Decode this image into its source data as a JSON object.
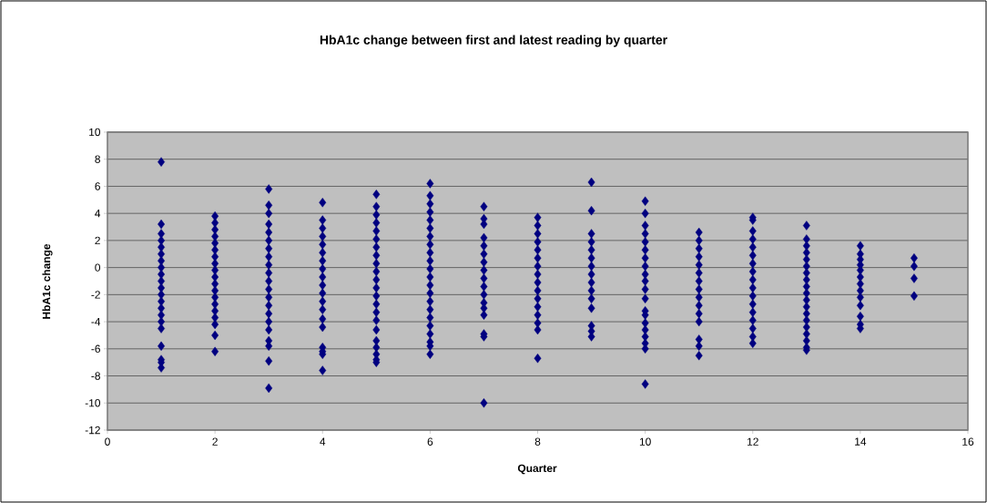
{
  "chart_data": {
    "type": "scatter",
    "title": "HbA1c change between first and latest reading by quarter",
    "xlabel": "Quarter",
    "ylabel": "HbA1c change",
    "xlim": [
      0,
      16
    ],
    "xticks": [
      0,
      2,
      4,
      6,
      8,
      10,
      12,
      14,
      16
    ],
    "ylim": [
      -12,
      10
    ],
    "yticks": [
      -12,
      -10,
      -8,
      -6,
      -4,
      -2,
      0,
      2,
      4,
      6,
      8,
      10
    ],
    "grid": "y",
    "marker": "diamond",
    "series": [
      {
        "color": "#000080",
        "x": [
          1,
          1,
          1,
          1,
          1,
          1,
          1,
          1,
          1,
          1,
          1,
          1,
          1,
          1,
          1,
          1,
          1,
          1,
          1,
          1,
          1,
          2,
          2,
          2,
          2,
          2,
          2,
          2,
          2,
          2,
          2,
          2,
          2,
          2,
          2,
          2,
          2,
          2,
          2,
          2,
          3,
          3,
          3,
          3,
          3,
          3,
          3,
          3,
          3,
          3,
          3,
          3,
          3,
          3,
          3,
          3,
          3,
          3,
          3,
          3,
          3,
          4,
          4,
          4,
          4,
          4,
          4,
          4,
          4,
          4,
          4,
          4,
          4,
          4,
          4,
          4,
          4,
          4,
          4,
          4,
          5,
          5,
          5,
          5,
          5,
          5,
          5,
          5,
          5,
          5,
          5,
          5,
          5,
          5,
          5,
          5,
          5,
          5,
          5,
          5,
          5,
          5,
          6,
          6,
          6,
          6,
          6,
          6,
          6,
          6,
          6,
          6,
          6,
          6,
          6,
          6,
          6,
          6,
          6,
          6,
          6,
          6,
          6,
          6,
          7,
          7,
          7,
          7,
          7,
          7,
          7,
          7,
          7,
          7,
          7,
          7,
          7,
          7,
          7,
          7,
          7,
          8,
          8,
          8,
          8,
          8,
          8,
          8,
          8,
          8,
          8,
          8,
          8,
          8,
          8,
          8,
          8,
          9,
          9,
          9,
          9,
          9,
          9,
          9,
          9,
          9,
          9,
          9,
          9,
          9,
          9,
          9,
          10,
          10,
          10,
          10,
          10,
          10,
          10,
          10,
          10,
          10,
          10,
          10,
          10,
          10,
          10,
          10,
          10,
          10,
          10,
          10,
          11,
          11,
          11,
          11,
          11,
          11,
          11,
          11,
          11,
          11,
          11,
          11,
          11,
          11,
          11,
          12,
          12,
          12,
          12,
          12,
          12,
          12,
          12,
          12,
          12,
          12,
          12,
          12,
          12,
          12,
          12,
          12,
          13,
          13,
          13,
          13,
          13,
          13,
          13,
          13,
          13,
          13,
          13,
          13,
          13,
          13,
          13,
          13,
          13,
          13,
          13,
          14,
          14,
          14,
          14,
          14,
          14,
          14,
          14,
          14,
          14,
          14,
          14,
          14,
          15,
          15,
          15,
          15
        ],
        "values": [
          7.8,
          3.2,
          2.5,
          2.0,
          1.5,
          1.0,
          0.5,
          0.0,
          -0.5,
          -1.0,
          -1.5,
          -2.0,
          -2.5,
          -3.0,
          -3.5,
          -4.0,
          -4.5,
          -5.8,
          -6.8,
          -7.0,
          -7.4,
          3.8,
          3.3,
          2.8,
          2.3,
          1.8,
          1.3,
          0.8,
          0.3,
          -0.2,
          -0.7,
          -1.2,
          -1.7,
          -2.2,
          -2.7,
          -3.2,
          -3.7,
          -4.2,
          -5.0,
          -6.2,
          5.8,
          4.6,
          4.0,
          3.2,
          2.6,
          2.0,
          1.4,
          0.8,
          0.2,
          -0.4,
          -1.0,
          -1.6,
          -2.2,
          -2.8,
          -3.4,
          -4.0,
          -4.6,
          -5.4,
          -5.8,
          -6.9,
          -8.9,
          4.8,
          3.5,
          2.9,
          2.3,
          1.7,
          1.1,
          0.5,
          -0.1,
          -0.7,
          -1.3,
          -1.9,
          -2.5,
          -3.1,
          -3.8,
          -4.4,
          -5.9,
          -6.2,
          -6.4,
          -7.6,
          5.4,
          4.5,
          3.9,
          3.3,
          2.7,
          2.1,
          1.5,
          0.9,
          0.3,
          -0.3,
          -0.9,
          -1.5,
          -2.1,
          -2.7,
          -3.3,
          -3.9,
          -4.6,
          -5.4,
          -5.9,
          -6.4,
          -6.8,
          -7.0,
          6.2,
          5.3,
          4.7,
          4.1,
          3.5,
          2.9,
          2.3,
          1.7,
          1.1,
          0.5,
          -0.1,
          -0.7,
          -1.3,
          -1.9,
          -2.5,
          -3.1,
          -3.7,
          -4.3,
          -4.9,
          -5.5,
          -5.8,
          -6.4,
          4.5,
          3.6,
          3.2,
          2.2,
          1.6,
          1.0,
          0.4,
          -0.2,
          -0.8,
          -1.4,
          -2.0,
          -2.6,
          -3.0,
          -3.5,
          -4.9,
          -5.1,
          -10.0,
          3.7,
          3.1,
          2.5,
          1.9,
          1.3,
          0.7,
          0.1,
          -0.5,
          -1.1,
          -1.7,
          -2.3,
          -2.9,
          -3.5,
          -4.1,
          -4.6,
          -6.7,
          6.3,
          4.2,
          2.5,
          1.9,
          1.3,
          0.7,
          0.1,
          -0.5,
          -1.1,
          -1.7,
          -2.3,
          -3.0,
          -4.3,
          -4.7,
          -5.1,
          4.9,
          4.0,
          3.1,
          2.5,
          1.9,
          1.3,
          0.7,
          0.1,
          -0.5,
          -1.0,
          -1.6,
          -2.3,
          -3.2,
          -3.5,
          -4.1,
          -4.6,
          -5.1,
          -5.6,
          -6.0,
          -8.6,
          2.6,
          2.0,
          1.4,
          0.8,
          0.2,
          -0.4,
          -1.0,
          -1.6,
          -2.2,
          -2.8,
          -3.4,
          -4.0,
          -5.3,
          -5.8,
          -6.5,
          3.7,
          3.5,
          2.7,
          2.1,
          1.5,
          0.9,
          0.3,
          -0.3,
          -0.9,
          -1.5,
          -2.1,
          -2.7,
          -3.3,
          -3.9,
          -4.5,
          -5.1,
          -5.6,
          3.1,
          2.1,
          1.6,
          1.1,
          0.6,
          0.1,
          -0.4,
          -0.9,
          -1.4,
          -1.9,
          -2.4,
          -2.9,
          -3.4,
          -3.9,
          -4.4,
          -4.9,
          -5.4,
          -5.9,
          -6.1,
          1.6,
          1.0,
          0.6,
          0.2,
          -0.2,
          -0.7,
          -1.2,
          -1.7,
          -2.2,
          -2.8,
          -3.6,
          -4.2,
          -4.5,
          0.7,
          0.1,
          -0.8,
          -2.1
        ]
      }
    ]
  }
}
